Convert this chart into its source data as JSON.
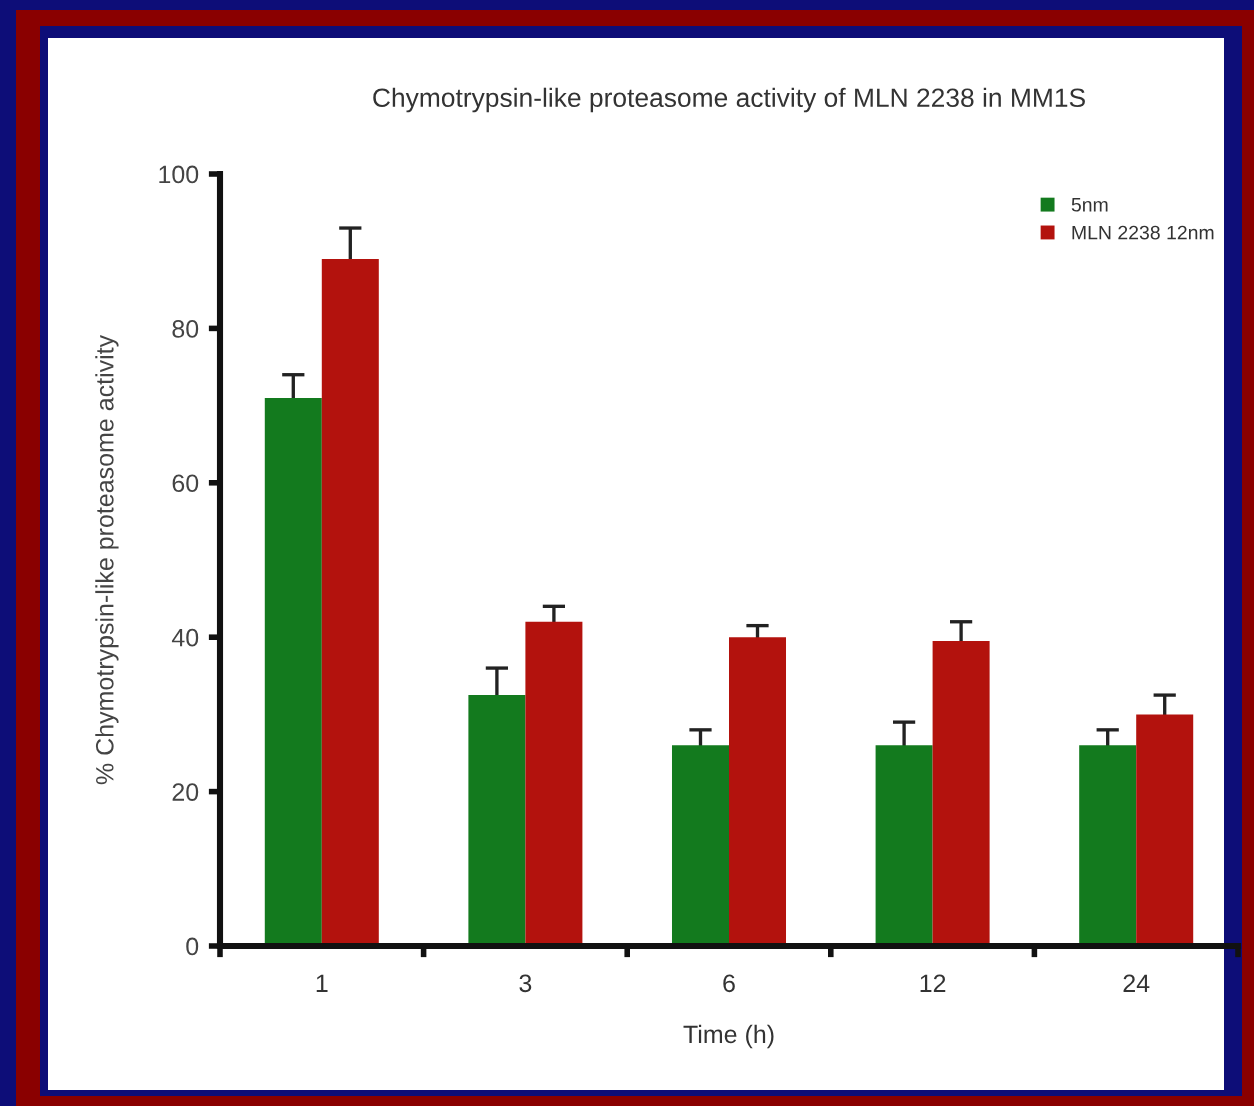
{
  "chart_data": {
    "type": "bar",
    "title": "Chymotrypsin-like proteasome activity of MLN 2238 in MM1S",
    "xlabel": "Time (h)",
    "ylabel": "% Chymotrypsin-like proteasome activity",
    "categories": [
      "1",
      "3",
      "6",
      "12",
      "24"
    ],
    "series": [
      {
        "name": "5nm",
        "color": "#137a1e",
        "values": [
          71,
          32.5,
          26,
          26,
          26
        ],
        "errors": [
          3,
          3.5,
          2,
          3,
          2
        ]
      },
      {
        "name": "MLN 2238 12nm",
        "color": "#b3120d",
        "values": [
          89,
          42,
          40,
          39.5,
          30
        ],
        "errors": [
          4,
          2,
          1.5,
          2.5,
          2.5
        ]
      }
    ],
    "ylim": [
      0,
      100
    ],
    "yticks": [
      0,
      20,
      40,
      60,
      80,
      100
    ],
    "legend": "top right"
  }
}
